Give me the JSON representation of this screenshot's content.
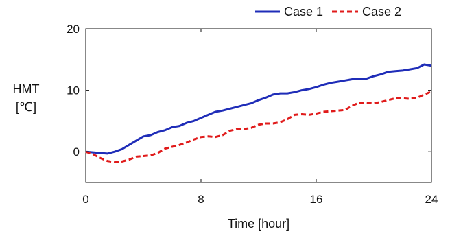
{
  "chart_data": {
    "type": "line",
    "xlabel": "Time [hour]",
    "ylabel": [
      "HMT",
      "[℃]"
    ],
    "xlim": [
      0,
      24
    ],
    "ylim": [
      -5,
      20
    ],
    "xticks": [
      0,
      8,
      16,
      24
    ],
    "yticks": [
      0,
      10,
      20
    ],
    "xtick_labels": [
      "0",
      "8",
      "16",
      "24"
    ],
    "ytick_labels": [
      "0",
      "10",
      "20"
    ],
    "grid": false,
    "legend_position": "top-right",
    "series": [
      {
        "name": "Case 1",
        "color": "#1f2db8",
        "style": "solid",
        "x": [
          0,
          0.5,
          1,
          1.5,
          2,
          2.5,
          3,
          3.5,
          4,
          4.5,
          5,
          5.5,
          6,
          6.5,
          7,
          7.5,
          8,
          8.5,
          9,
          9.5,
          10,
          10.5,
          11,
          11.5,
          12,
          12.5,
          13,
          13.5,
          14,
          14.5,
          15,
          15.5,
          16,
          16.5,
          17,
          17.5,
          18,
          18.5,
          19,
          19.5,
          20,
          20.5,
          21,
          21.5,
          22,
          22.5,
          23,
          23.5,
          24
        ],
        "y": [
          0.0,
          -0.1,
          -0.2,
          -0.3,
          0.0,
          0.4,
          1.1,
          1.8,
          2.5,
          2.7,
          3.2,
          3.5,
          4.0,
          4.2,
          4.7,
          5.0,
          5.5,
          6.0,
          6.5,
          6.7,
          7.0,
          7.3,
          7.6,
          7.9,
          8.4,
          8.8,
          9.3,
          9.5,
          9.5,
          9.7,
          10.0,
          10.2,
          10.5,
          10.9,
          11.2,
          11.4,
          11.6,
          11.8,
          11.8,
          11.9,
          12.3,
          12.6,
          13.0,
          13.1,
          13.2,
          13.4,
          13.6,
          14.2,
          14.0
        ]
      },
      {
        "name": "Case 2",
        "color": "#e01b1b",
        "style": "dashed",
        "x": [
          0,
          0.5,
          1,
          1.5,
          2,
          2.5,
          3,
          3.5,
          4,
          4.5,
          5,
          5.5,
          6,
          6.5,
          7,
          7.5,
          8,
          8.5,
          9,
          9.5,
          10,
          10.5,
          11,
          11.5,
          12,
          12.5,
          13,
          13.5,
          14,
          14.5,
          15,
          15.5,
          16,
          16.5,
          17,
          17.5,
          18,
          18.5,
          19,
          19.5,
          20,
          20.5,
          21,
          21.5,
          22,
          22.5,
          23,
          23.5,
          24
        ],
        "y": [
          0.0,
          -0.4,
          -1.0,
          -1.5,
          -1.7,
          -1.6,
          -1.3,
          -0.8,
          -0.7,
          -0.6,
          -0.2,
          0.5,
          0.8,
          1.1,
          1.5,
          2.0,
          2.4,
          2.5,
          2.4,
          2.7,
          3.4,
          3.7,
          3.7,
          3.9,
          4.4,
          4.6,
          4.6,
          4.8,
          5.3,
          6.0,
          6.1,
          6.0,
          6.2,
          6.5,
          6.6,
          6.7,
          6.8,
          7.5,
          8.0,
          8.0,
          7.9,
          8.1,
          8.4,
          8.7,
          8.7,
          8.6,
          8.8,
          9.3,
          9.8
        ]
      }
    ]
  }
}
